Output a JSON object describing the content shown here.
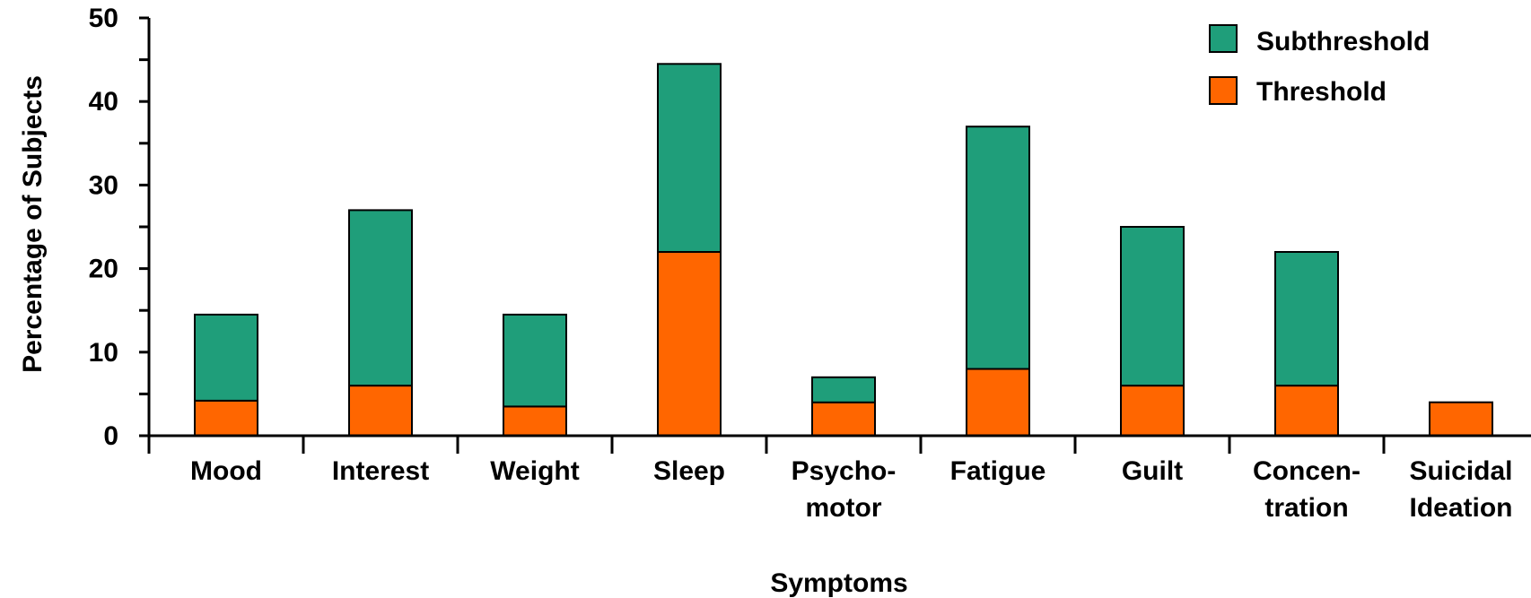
{
  "chart_data": {
    "type": "bar",
    "stacked": true,
    "categories": [
      [
        "Mood"
      ],
      [
        "Interest"
      ],
      [
        "Weight"
      ],
      [
        "Sleep"
      ],
      [
        "Psycho-",
        "motor"
      ],
      [
        "Fatigue"
      ],
      [
        "Guilt"
      ],
      [
        "Concen-",
        "tration"
      ],
      [
        "Suicidal",
        "Ideation"
      ]
    ],
    "series": [
      {
        "name": "Threshold",
        "color": "#ff6600",
        "values": [
          4.2,
          6,
          3.5,
          22,
          4,
          8,
          6,
          6,
          4
        ]
      },
      {
        "name": "Subthreshold",
        "color": "#1f9e7a",
        "values": [
          10.3,
          21,
          11,
          22.5,
          3,
          29,
          19,
          16,
          0
        ]
      }
    ],
    "xlabel": "Symptoms",
    "ylabel": "Percentage of Subjects",
    "ylim": [
      0,
      50
    ],
    "yticks": [
      "0",
      "10",
      "20",
      "30",
      "40",
      "50"
    ],
    "legend": {
      "placement": "top-right",
      "entries": [
        {
          "label": "Subthreshold",
          "color": "#1f9e7a"
        },
        {
          "label": "Threshold",
          "color": "#ff6600"
        }
      ]
    },
    "grid": false
  }
}
